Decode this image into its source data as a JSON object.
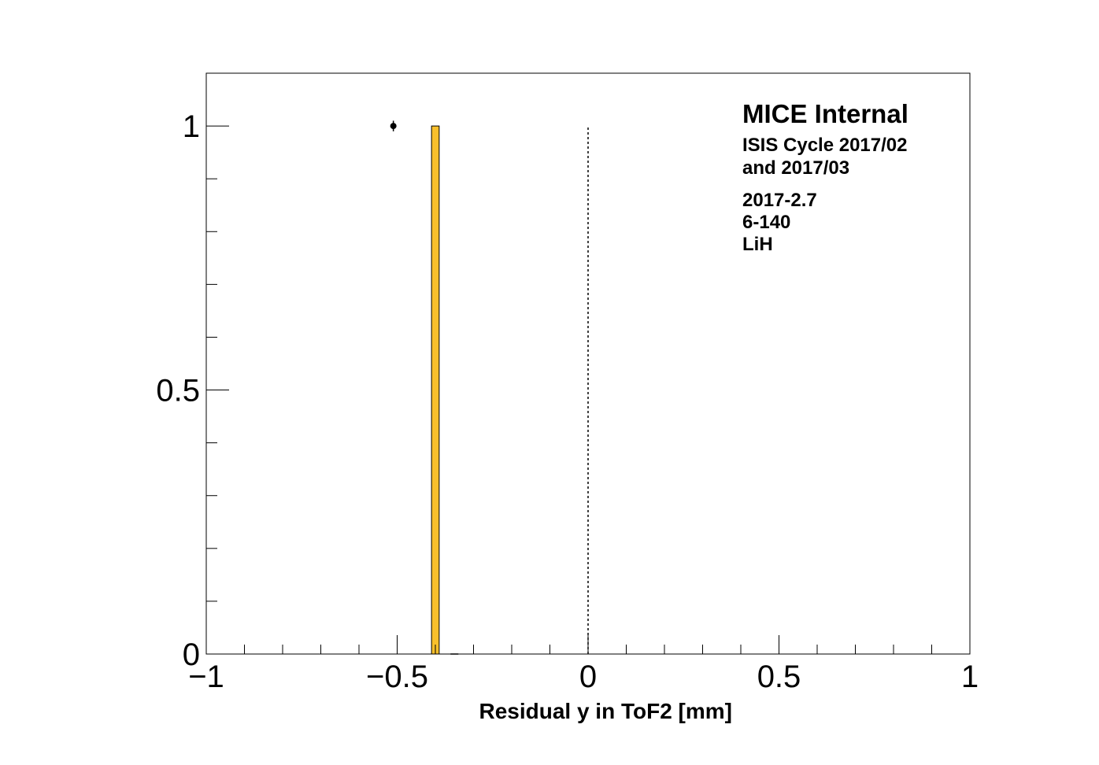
{
  "chart_data": {
    "type": "bar",
    "title": "",
    "xlabel": "Residual y in ToF2 [mm]",
    "ylabel": "",
    "xlim": [
      -1,
      1
    ],
    "ylim": [
      0,
      1.1
    ],
    "x_ticks": [
      -1,
      -0.5,
      0,
      0.5,
      1
    ],
    "x_tick_labels": [
      "−1",
      "−0.5",
      "0",
      "0.5",
      "1"
    ],
    "y_ticks": [
      0,
      0.5,
      1
    ],
    "y_tick_labels": [
      "0",
      "0.5",
      "1"
    ],
    "grid": false,
    "series": [
      {
        "style": "filled-histogram",
        "color": "#f9c02c",
        "bins": [
          {
            "x_low": -0.41,
            "x_high": -0.39,
            "value": 1
          }
        ]
      },
      {
        "style": "points-with-errors",
        "color": "#000000",
        "points": [
          {
            "x": -0.51,
            "y": 1,
            "yerr": 0.01
          },
          {
            "x": -0.35,
            "y": 0,
            "yerr": 0
          }
        ]
      }
    ],
    "reference_line": {
      "x": 0,
      "y_from": 0,
      "y_to": 1,
      "style": "dotted"
    },
    "annotations": [
      {
        "text": "MICE Internal",
        "size": "large"
      },
      {
        "text": "ISIS Cycle 2017/02",
        "size": "small"
      },
      {
        "text": "and 2017/03",
        "size": "small"
      },
      {
        "text": "2017-2.7",
        "size": "small"
      },
      {
        "text": "6-140",
        "size": "small"
      },
      {
        "text": "LiH",
        "size": "small"
      }
    ]
  }
}
